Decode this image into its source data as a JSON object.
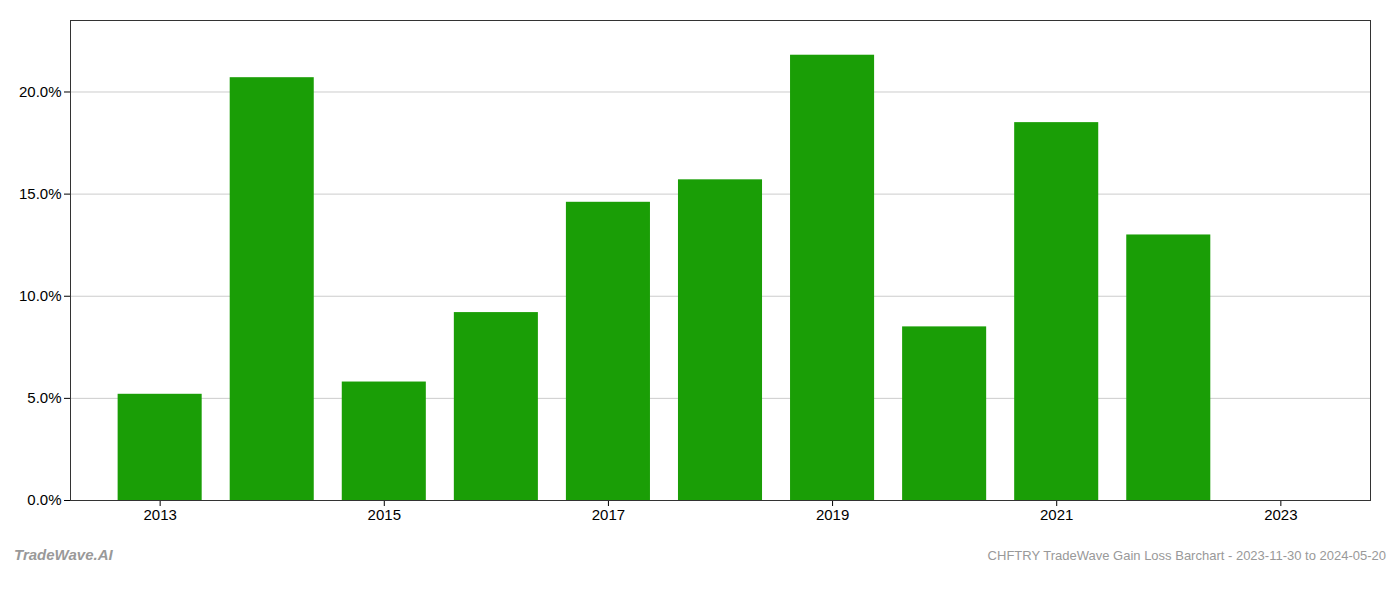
{
  "chart_data": {
    "type": "bar",
    "x": [
      2013,
      2014,
      2015,
      2016,
      2017,
      2018,
      2019,
      2020,
      2021,
      2022
    ],
    "values": [
      0.052,
      0.207,
      0.058,
      0.092,
      0.146,
      0.157,
      0.218,
      0.085,
      0.185,
      0.13
    ],
    "color": "#1a9e06",
    "xlim": [
      2012.2,
      2023.8
    ],
    "xticks": [
      2013,
      2015,
      2017,
      2019,
      2021,
      2023
    ],
    "ylim": [
      0,
      0.235
    ],
    "yticks": [
      {
        "value": 0.0,
        "label": "0.0%"
      },
      {
        "value": 0.05,
        "label": "5.0%"
      },
      {
        "value": 0.1,
        "label": "10.0%"
      },
      {
        "value": 0.15,
        "label": "15.0%"
      },
      {
        "value": 0.2,
        "label": "20.0%"
      }
    ],
    "grid": true,
    "annotations": [
      "TradeWave.AI",
      "CHFTRY TradeWave Gain Loss Barchart - 2023-11-30 to 2024-05-20"
    ]
  }
}
